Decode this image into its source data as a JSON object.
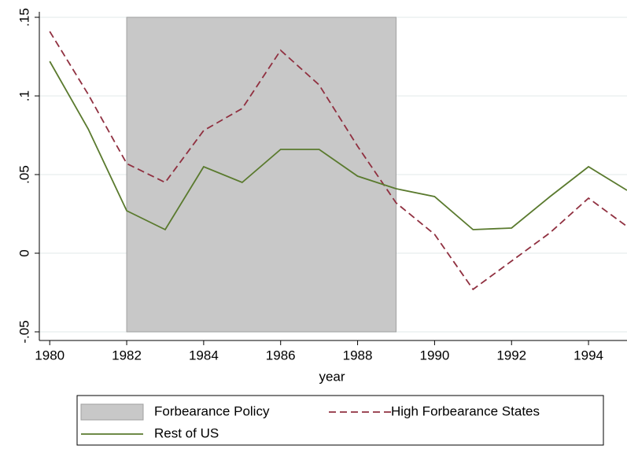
{
  "chart_data": {
    "type": "line",
    "xlabel": "year",
    "x": [
      1980,
      1981,
      1982,
      1983,
      1984,
      1985,
      1986,
      1987,
      1988,
      1989,
      1990,
      1991,
      1992,
      1993,
      1994,
      1995
    ],
    "shaded_region": {
      "name": "Forbearance Policy",
      "x": [
        1982,
        1989
      ],
      "y": [
        -0.05,
        0.15
      ],
      "color": "#c8c8c8"
    },
    "series": [
      {
        "name": "High Forbearance States",
        "color": "#903040",
        "dashed": true,
        "values": [
          0.141,
          0.101,
          0.057,
          0.045,
          0.078,
          0.092,
          0.129,
          0.107,
          0.068,
          0.032,
          0.012,
          -0.023,
          -0.005,
          0.013,
          0.035,
          0.017
        ]
      },
      {
        "name": "Rest of US",
        "color": "#5a7a2e",
        "dashed": false,
        "values": [
          0.122,
          0.079,
          0.027,
          0.015,
          0.055,
          0.045,
          0.066,
          0.066,
          0.049,
          0.041,
          0.036,
          0.015,
          0.016,
          0.036,
          0.055,
          0.04
        ]
      }
    ],
    "xlim": [
      1979.73,
      1995
    ],
    "xticks": [
      1980,
      1982,
      1984,
      1986,
      1988,
      1990,
      1992,
      1994
    ],
    "ylim": [
      -0.0555,
      0.1535
    ],
    "yticks": [
      {
        "value": -0.05,
        "label": "-.05"
      },
      0,
      {
        "value": 0.05,
        "label": ".05"
      },
      {
        "value": 0.1,
        "label": ".1"
      },
      {
        "value": 0.15,
        "label": ".15"
      }
    ],
    "grid": true
  }
}
